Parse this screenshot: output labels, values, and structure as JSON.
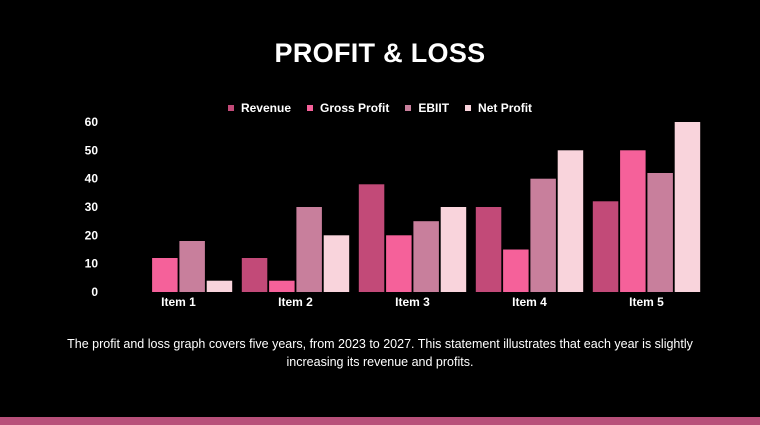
{
  "slide": {
    "title": "PROFIT & LOSS",
    "caption": "The profit and loss graph covers five years, from 2023 to 2027. This statement illustrates that each year is slightly increasing its revenue and profits."
  },
  "chart_data": {
    "type": "bar",
    "title": "",
    "xlabel": "",
    "ylabel": "",
    "categories": [
      "Item 1",
      "Item 2",
      "Item 3",
      "Item 4",
      "Item 5"
    ],
    "ylim": [
      0,
      60
    ],
    "yticks": [
      0,
      10,
      20,
      30,
      40,
      50,
      60
    ],
    "grid": false,
    "legend_position": "top-center",
    "series": [
      {
        "name": "Revenue",
        "color": "#c24a78",
        "values": [
          0,
          12,
          38,
          30,
          32
        ]
      },
      {
        "name": "Gross Profit",
        "color": "#f5619a",
        "values": [
          12,
          4,
          20,
          15,
          50
        ]
      },
      {
        "name": "EBIIT",
        "color": "#c87f9c",
        "values": [
          18,
          30,
          25,
          40,
          42
        ]
      },
      {
        "name": "Net Profit",
        "color": "#f9d4dc",
        "values": [
          4,
          20,
          30,
          50,
          60
        ]
      }
    ]
  },
  "colors": {
    "background": "#000000",
    "accent_bar": "#b8507a",
    "text": "#ffffff"
  }
}
